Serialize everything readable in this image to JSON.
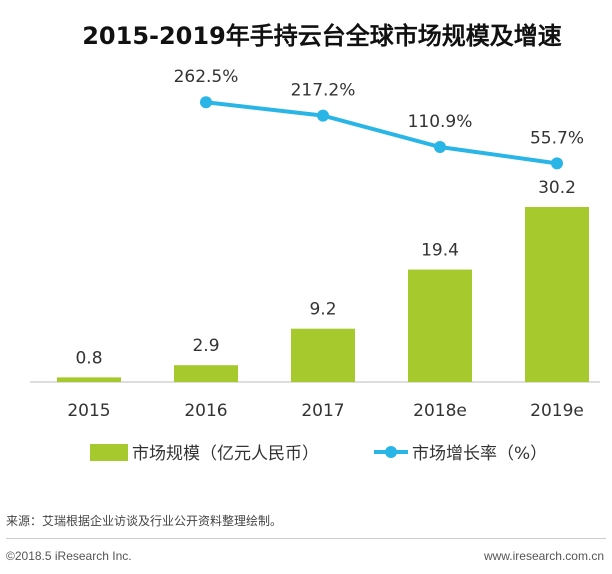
{
  "colors": {
    "bar": "#a6c92d",
    "line": "#29b6e6",
    "axis": "#bbbbbb"
  },
  "chart_data": {
    "type": "bar+line",
    "title": "2015-2019年手持云台全球市场规模及增速",
    "categories": [
      "2015",
      "2016",
      "2017",
      "2018e",
      "2019e"
    ],
    "series": [
      {
        "name": "市场规模（亿元人民币）",
        "type": "bar",
        "values": [
          0.8,
          2.9,
          9.2,
          19.4,
          30.2
        ],
        "labels": [
          "0.8",
          "2.9",
          "9.2",
          "19.4",
          "30.2"
        ]
      },
      {
        "name": "市场增长率（%）",
        "type": "line",
        "x": [
          "2016",
          "2017",
          "2018e",
          "2019e"
        ],
        "values": [
          262.5,
          217.2,
          110.9,
          55.7
        ],
        "labels": [
          "262.5%",
          "217.2%",
          "110.9%",
          "55.7%"
        ]
      }
    ],
    "legend_position": "bottom"
  },
  "footer": {
    "source": "来源：艾瑞根据企业访谈及行业公开资料整理绘制。",
    "copyright": "©2018.5 iResearch Inc.",
    "website": "www.iresearch.com.cn"
  }
}
